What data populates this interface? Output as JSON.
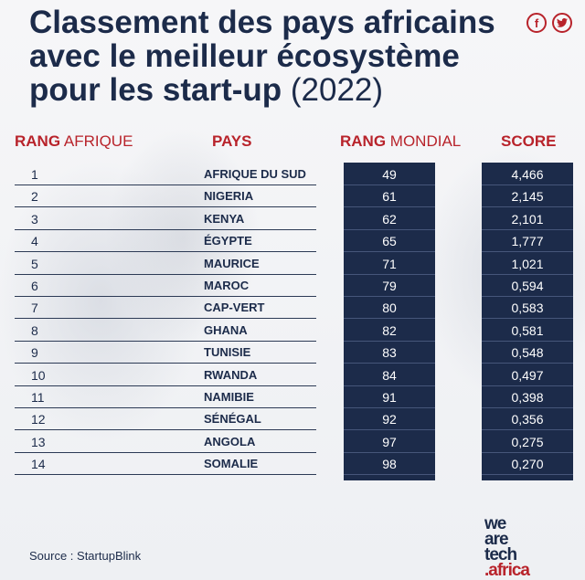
{
  "title": {
    "line1": "Classement des pays africains",
    "line2": "avec le meilleur écosystème",
    "line3": "pour les start-up",
    "year": "(2022)"
  },
  "social": {
    "facebook_icon": "f",
    "twitter_icon": "🐦"
  },
  "headers": {
    "rang_bold": "RANG",
    "rang_light": "AFRIQUE",
    "pays": "PAYS",
    "mondial_bold": "RANG",
    "mondial_light": "MONDIAL",
    "score": "SCORE"
  },
  "chart_data": {
    "type": "table",
    "columns": [
      "RANG AFRIQUE",
      "PAYS",
      "RANG MONDIAL",
      "SCORE"
    ],
    "rows": [
      [
        "1",
        "AFRIQUE DU SUD",
        "49",
        "4,466"
      ],
      [
        "2",
        "NIGERIA",
        "61",
        "2,145"
      ],
      [
        "3",
        "KENYA",
        "62",
        "2,101"
      ],
      [
        "4",
        "ÉGYPTE",
        "65",
        "1,777"
      ],
      [
        "5",
        "MAURICE",
        "71",
        "1,021"
      ],
      [
        "6",
        "MAROC",
        "79",
        "0,594"
      ],
      [
        "7",
        "CAP-VERT",
        "80",
        "0,583"
      ],
      [
        "8",
        "GHANA",
        "82",
        "0,581"
      ],
      [
        "9",
        "TUNISIE",
        "83",
        "0,548"
      ],
      [
        "10",
        "RWANDA",
        "84",
        "0,497"
      ],
      [
        "11",
        "NAMIBIE",
        "91",
        "0,398"
      ],
      [
        "12",
        "SÉNÉGAL",
        "92",
        "0,356"
      ],
      [
        "13",
        "ANGOLA",
        "97",
        "0,275"
      ],
      [
        "14",
        "SOMALIE",
        "98",
        "0,270"
      ]
    ]
  },
  "source": "Source : StartupBlink",
  "logo": {
    "l1": "we",
    "l2": "are",
    "l3": "tech",
    "l4": ".africa"
  },
  "colors": {
    "navy": "#1c2b4a",
    "red": "#b8232b"
  }
}
